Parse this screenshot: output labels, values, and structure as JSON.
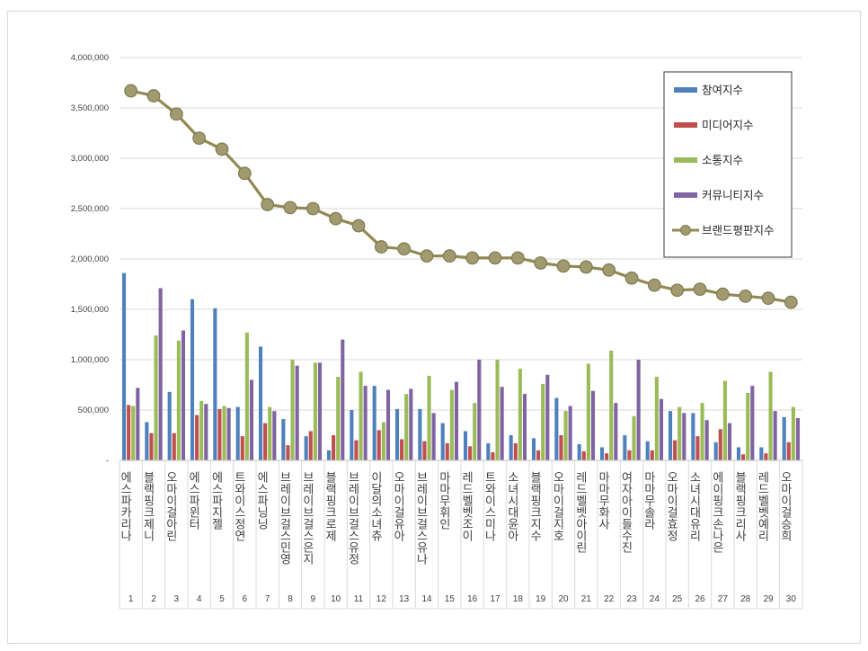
{
  "chart_data": {
    "type": "bar+line",
    "title": "",
    "xlabel": "",
    "ylabel": "",
    "ylim": [
      0,
      4000000
    ],
    "yticks": [
      "4,000,000",
      "3,500,000",
      "3,000,000",
      "2,500,000",
      "2,000,000",
      "1,500,000",
      "1,000,000",
      "500,000",
      "-"
    ],
    "grid": true,
    "legend_position": "top-right",
    "categories": [
      "에스파 카리나",
      "블랙핑크 제니",
      "오마이걸 아린",
      "에스파 윈터",
      "에스파 지젤",
      "트와이스 정연",
      "에스파 닝닝",
      "브레이브걸스 민영",
      "브레이브걸스 은지",
      "블랙핑크 로제",
      "브레이브걸스 유정",
      "이달의소녀 츄",
      "오마이걸 유아",
      "브레이브걸스 유나",
      "마마무 휘인",
      "레드벨벳 조이",
      "트와이스 미나",
      "소녀시대 윤아",
      "블랙핑크 지수",
      "오마이걸 지호",
      "레드벨벳 아이린",
      "마마무 화사",
      "여자아이들 수진",
      "마마무 솔라",
      "오마이걸 효정",
      "소녀시대 유리",
      "에이핑크 손나은",
      "블랙핑크 리사",
      "레드벨벳 예리",
      "오마이걸 승희"
    ],
    "category_vertical_labels": [
      "에스파카리나",
      "블랙핑크제니",
      "오마이걸아린",
      "에스파윈터",
      "에스파지젤",
      "트와이스정연",
      "에스파닝닝",
      "브레이브걸스민영",
      "브레이브걸스은지",
      "블랙핑크로제",
      "브레이브걸스유정",
      "이달의소녀츄",
      "오마이걸유아",
      "브레이브걸스유나",
      "마마무휘인",
      "레드벨벳조이",
      "트와이스미나",
      "소녀시대윤아",
      "블랙핑크지수",
      "오마이걸지호",
      "레드벨벳아이린",
      "마마무화사",
      "여자아이들수진",
      "마마무솔라",
      "오마이걸효정",
      "소녀시대유리",
      "에이핑크손나은",
      "블랙핑크리사",
      "레드벨벳예리",
      "오마이걸승희"
    ],
    "ranks": [
      "1",
      "2",
      "3",
      "4",
      "5",
      "6",
      "7",
      "8",
      "9",
      "10",
      "11",
      "12",
      "13",
      "14",
      "15",
      "16",
      "17",
      "18",
      "19",
      "20",
      "21",
      "22",
      "23",
      "24",
      "25",
      "26",
      "27",
      "28",
      "29",
      "30"
    ],
    "series": [
      {
        "name": "참여지수",
        "kind": "bar",
        "color": "#4f81bd",
        "values": [
          1860000,
          380000,
          680000,
          1600000,
          1510000,
          530000,
          1130000,
          410000,
          240000,
          100000,
          500000,
          740000,
          510000,
          510000,
          370000,
          290000,
          170000,
          250000,
          220000,
          620000,
          160000,
          130000,
          250000,
          190000,
          490000,
          470000,
          180000,
          130000,
          130000,
          430000
        ]
      },
      {
        "name": "미디어지수",
        "kind": "bar",
        "color": "#c0504d",
        "values": [
          550000,
          270000,
          270000,
          450000,
          510000,
          240000,
          370000,
          150000,
          290000,
          250000,
          200000,
          300000,
          210000,
          190000,
          170000,
          140000,
          80000,
          170000,
          100000,
          250000,
          90000,
          70000,
          100000,
          100000,
          200000,
          240000,
          310000,
          60000,
          70000,
          180000
        ]
      },
      {
        "name": "소통지수",
        "kind": "bar",
        "color": "#9bbb59",
        "values": [
          540000,
          1240000,
          1190000,
          590000,
          540000,
          1270000,
          530000,
          1000000,
          970000,
          830000,
          880000,
          380000,
          660000,
          840000,
          700000,
          570000,
          1000000,
          910000,
          760000,
          490000,
          960000,
          1090000,
          440000,
          830000,
          530000,
          570000,
          790000,
          670000,
          880000,
          530000
        ]
      },
      {
        "name": "커뮤니티지수",
        "kind": "bar",
        "color": "#8064a2",
        "values": [
          720000,
          1710000,
          1290000,
          560000,
          520000,
          800000,
          490000,
          940000,
          970000,
          1200000,
          740000,
          700000,
          710000,
          470000,
          780000,
          1000000,
          730000,
          660000,
          850000,
          540000,
          690000,
          570000,
          1000000,
          610000,
          470000,
          400000,
          370000,
          740000,
          490000,
          420000
        ]
      },
      {
        "name": "브랜드평판지수",
        "kind": "line",
        "color": "#938953",
        "values": [
          3670000,
          3620000,
          3440000,
          3200000,
          3090000,
          2850000,
          2540000,
          2510000,
          2500000,
          2400000,
          2330000,
          2120000,
          2100000,
          2030000,
          2030000,
          2010000,
          2010000,
          2010000,
          1960000,
          1930000,
          1920000,
          1890000,
          1810000,
          1740000,
          1690000,
          1700000,
          1650000,
          1630000,
          1610000,
          1570000
        ]
      }
    ]
  }
}
